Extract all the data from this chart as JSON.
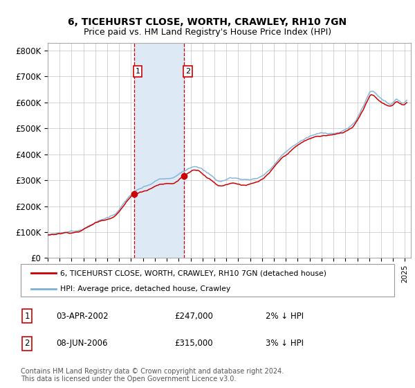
{
  "title": "6, TICEHURST CLOSE, WORTH, CRAWLEY, RH10 7GN",
  "subtitle": "Price paid vs. HM Land Registry's House Price Index (HPI)",
  "ylabel_ticks": [
    "£0",
    "£100K",
    "£200K",
    "£300K",
    "£400K",
    "£500K",
    "£600K",
    "£700K",
    "£800K"
  ],
  "ytick_vals": [
    0,
    100000,
    200000,
    300000,
    400000,
    500000,
    600000,
    700000,
    800000
  ],
  "ylim": [
    0,
    830000
  ],
  "xlim_start": 1995.0,
  "xlim_end": 2025.5,
  "sale1_year": 2002.25,
  "sale1_price": 247000,
  "sale2_year": 2006.44,
  "sale2_price": 315000,
  "hpi_color": "#7bafd4",
  "price_color": "#cc0000",
  "shade_color": "#ddeaf6",
  "legend_label_price": "6, TICEHURST CLOSE, WORTH, CRAWLEY, RH10 7GN (detached house)",
  "legend_label_hpi": "HPI: Average price, detached house, Crawley",
  "background_color": "#ffffff",
  "grid_color": "#cccccc",
  "footnote": "Contains HM Land Registry data © Crown copyright and database right 2024.\nThis data is licensed under the Open Government Licence v3.0."
}
